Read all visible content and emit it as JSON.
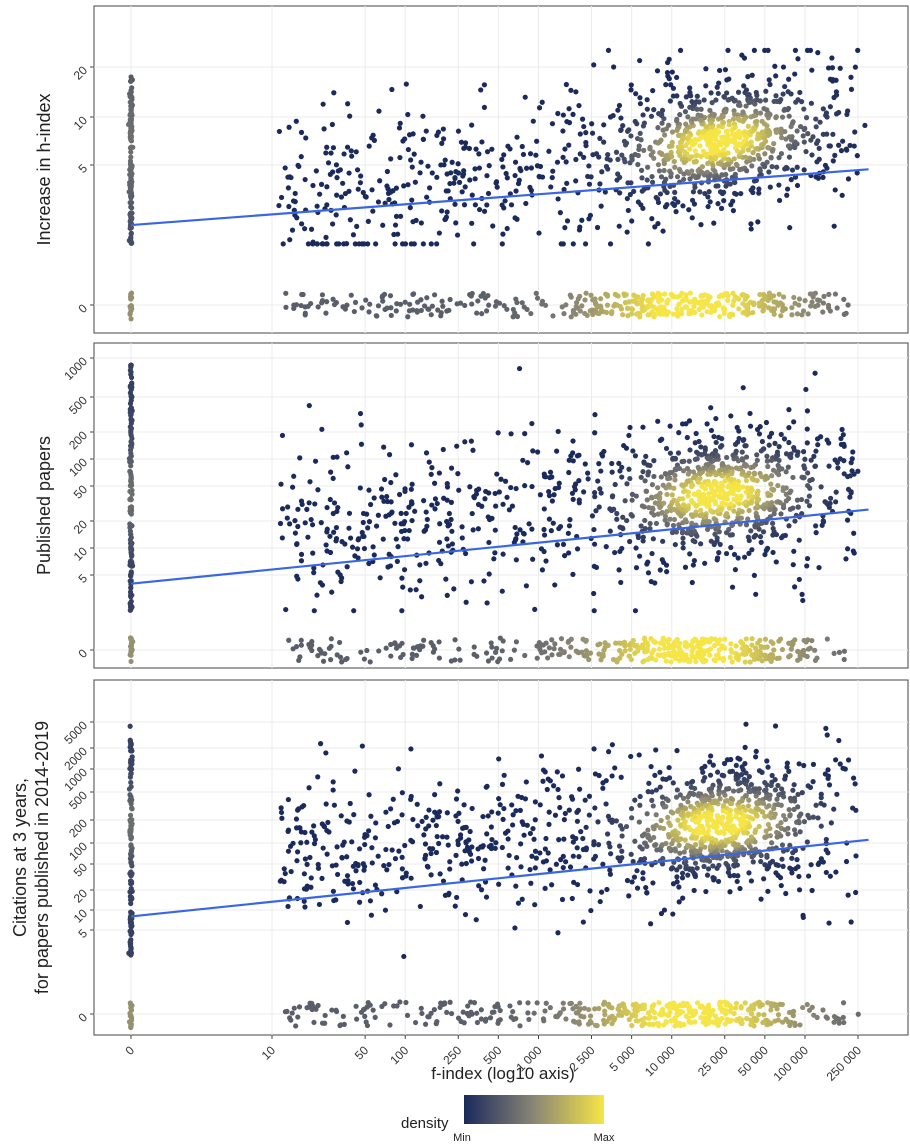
{
  "chart_data": {
    "type": "scatter",
    "x_axis": {
      "label": "f-index (log10 axis)",
      "scale": "log10",
      "tick_labels": [
        "0",
        "10",
        "50",
        "100",
        "250",
        "500",
        "1 000",
        "2 500",
        "5 000",
        "10 000",
        "25 000",
        "50 000",
        "100 000",
        "250 000"
      ]
    },
    "legend": {
      "title": "density",
      "min_label": "Min",
      "max_label": "Max",
      "low_color": "#1a2a5c",
      "mid_color": "#8a8675",
      "high_color": "#f6e546",
      "position": "bottom"
    },
    "panels": [
      {
        "id": "h_index",
        "ylabel": "Increase in h-index",
        "y_ticks": [
          "0",
          "5",
          "10",
          "20"
        ],
        "trend": {
          "type": "linear-on-log",
          "y_at_x1": 2.1,
          "y_at_x300000": 4.7,
          "color": "#3a66e6"
        },
        "zero_band": true
      },
      {
        "id": "papers",
        "ylabel": "Published papers",
        "y_ticks": [
          "0",
          "5",
          "10",
          "20",
          "50",
          "100",
          "200",
          "500",
          "1000"
        ],
        "trend": {
          "type": "linear-on-log",
          "y_at_x1": 4,
          "y_at_x300000": 27,
          "color": "#3a66e6"
        },
        "zero_band": true
      },
      {
        "id": "citations",
        "ylabel": [
          "Citations at 3 years,",
          "for papers published in 2014-2019"
        ],
        "y_ticks": [
          "0",
          "5",
          "10",
          "20",
          "50",
          "100",
          "200",
          "500",
          "1000",
          "2000",
          "5000"
        ],
        "trend": {
          "type": "linear-on-log",
          "y_at_x1": 8,
          "y_at_x300000": 110,
          "color": "#3a66e6"
        },
        "zero_band": true
      }
    ],
    "grid": true,
    "note": "Approximately 3000 points per panel; dense core near f-index 10 000-50 000 (yellow), sparse edges dark navy."
  }
}
